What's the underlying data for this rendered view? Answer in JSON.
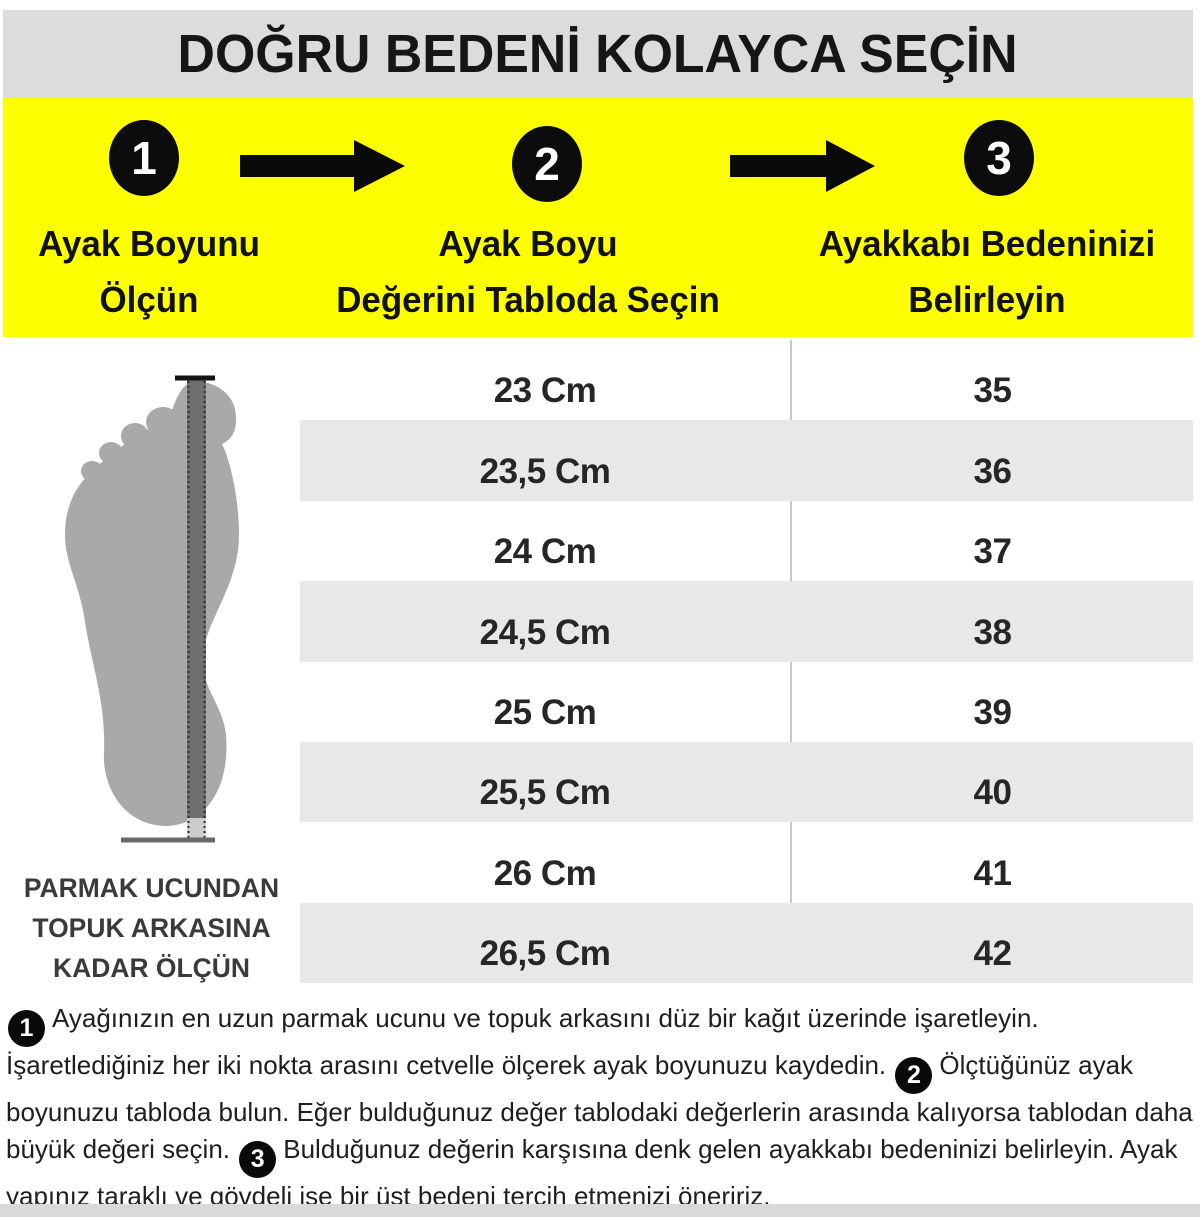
{
  "title": "DOĞRU BEDENİ KOLAYCA SEÇİN",
  "banner": {
    "steps": [
      {
        "number": "1",
        "line1": "Ayak Boyunu",
        "line2": "Ölçün"
      },
      {
        "number": "2",
        "line1": "Ayak Boyu",
        "line2": "Değerini Tabloda Seçin"
      },
      {
        "number": "3",
        "line1": "Ayakkabı Bedeninizi",
        "line2": "Belirleyin"
      }
    ]
  },
  "measure_panel": {
    "caption_line1": "PARMAK UCUNDAN",
    "caption_line2": "TOPUK ARKASINA",
    "caption_line3": "KADAR ÖLÇÜN"
  },
  "size_table": {
    "rows": [
      {
        "foot_length": "23 Cm",
        "shoe_size": "35"
      },
      {
        "foot_length": "23,5 Cm",
        "shoe_size": "36"
      },
      {
        "foot_length": "24 Cm",
        "shoe_size": "37"
      },
      {
        "foot_length": "24,5 Cm",
        "shoe_size": "38"
      },
      {
        "foot_length": "25 Cm",
        "shoe_size": "39"
      },
      {
        "foot_length": "25,5 Cm",
        "shoe_size": "40"
      },
      {
        "foot_length": "26 Cm",
        "shoe_size": "41"
      },
      {
        "foot_length": "26,5 Cm",
        "shoe_size": "42"
      }
    ]
  },
  "instructions": {
    "segments": [
      {
        "badge": "1"
      },
      {
        "text": "Ayağınızın en uzun parmak ucunu ve topuk arkasını düz bir kağıt üzerinde işaretleyin. İşaretlediğiniz her iki nokta arasını cetvelle ölçerek ayak boyunuzu kaydedin. "
      },
      {
        "badge": "2"
      },
      {
        "text": "Ölçtüğünüz ayak boyunuzu tabloda bulun. Eğer bulduğunuz değer tablodaki değerlerin arasında kalıyorsa tablodan daha büyük değeri seçin. "
      },
      {
        "badge": "3"
      },
      {
        "text": "Bulduğunuz değerin karşısına denk gelen ayakkabı bedeninizi belirleyin. Ayak yapınız taraklı ve gövdeli ise bir üst bedeni tercih etmenizi öneririz."
      }
    ]
  },
  "colors": {
    "banner_yellow": "#fdff00",
    "title_bg": "#dcdcdc",
    "row_alt_gray": "#e8e8e8",
    "foot_gray": "#a9a9a9",
    "ruler_gray": "#6f6f6f",
    "badge_black": "#0c0c0c"
  }
}
